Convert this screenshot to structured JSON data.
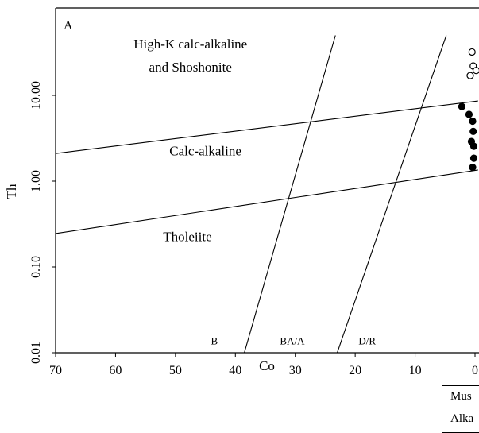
{
  "chart_data": {
    "type": "scatter",
    "panel_label": "A",
    "xlabel": "Co",
    "ylabel": "Th",
    "x_reversed": true,
    "y_scale": "log",
    "xlim": [
      70,
      0
    ],
    "ylim": [
      0.01,
      50
    ],
    "x_ticks": [
      {
        "value": 70,
        "label": "70"
      },
      {
        "value": 60,
        "label": "60"
      },
      {
        "value": 50,
        "label": "50"
      },
      {
        "value": 40,
        "label": "40"
      },
      {
        "value": 30,
        "label": "30"
      },
      {
        "value": 20,
        "label": "20"
      },
      {
        "value": 10,
        "label": "10"
      },
      {
        "value": 0,
        "label": "0"
      }
    ],
    "y_ticks": [
      {
        "value": 0.01,
        "label": "0.01"
      },
      {
        "value": 0.1,
        "label": "0.10"
      },
      {
        "value": 1,
        "label": "1.00"
      },
      {
        "value": 10,
        "label": "10.00"
      }
    ],
    "boundaries": [
      {
        "name": "High-K / Calc-alkaline",
        "points": [
          [
            70,
            2.1
          ],
          [
            -0.5,
            8.6
          ]
        ]
      },
      {
        "name": "Calc-alkaline / Tholeiite",
        "points": [
          [
            70,
            0.245
          ],
          [
            -0.5,
            1.35
          ]
        ]
      },
      {
        "name": "B / BA-A",
        "points": [
          [
            38.5,
            0.01
          ],
          [
            23.3,
            50
          ]
        ]
      },
      {
        "name": "BA-A / D-R",
        "points": [
          [
            23.0,
            0.01
          ],
          [
            4.8,
            50
          ]
        ]
      }
    ],
    "field_labels": [
      {
        "text": "High-K calc-alkaline",
        "x": 47.5,
        "y": 35
      },
      {
        "text": "and Shoshonite",
        "x": 47.5,
        "y": 19
      },
      {
        "text": "Calc-alkaline",
        "x": 45,
        "y": 2.0
      },
      {
        "text": "Tholeiite",
        "x": 48,
        "y": 0.2
      }
    ],
    "region_labels": [
      {
        "text": "B",
        "x": 43.5,
        "y": 0.0125
      },
      {
        "text": "BA/A",
        "x": 30.5,
        "y": 0.0125
      },
      {
        "text": "D/R",
        "x": 18,
        "y": 0.0125
      }
    ],
    "series": [
      {
        "name": "open",
        "marker": "open-circle",
        "points": [
          [
            0.5,
            32
          ],
          [
            0.3,
            22
          ],
          [
            -0.2,
            19.5
          ],
          [
            0.8,
            17
          ]
        ]
      },
      {
        "name": "filled",
        "marker": "filled-circle",
        "points": [
          [
            2.2,
            7.4
          ],
          [
            1.0,
            6.0
          ],
          [
            0.4,
            5.0
          ],
          [
            0.3,
            3.8
          ],
          [
            0.6,
            2.9
          ],
          [
            0.2,
            2.55
          ],
          [
            0.2,
            1.85
          ],
          [
            0.4,
            1.45
          ]
        ]
      }
    ],
    "legend_entries": [
      "Mus",
      "Alka"
    ]
  }
}
